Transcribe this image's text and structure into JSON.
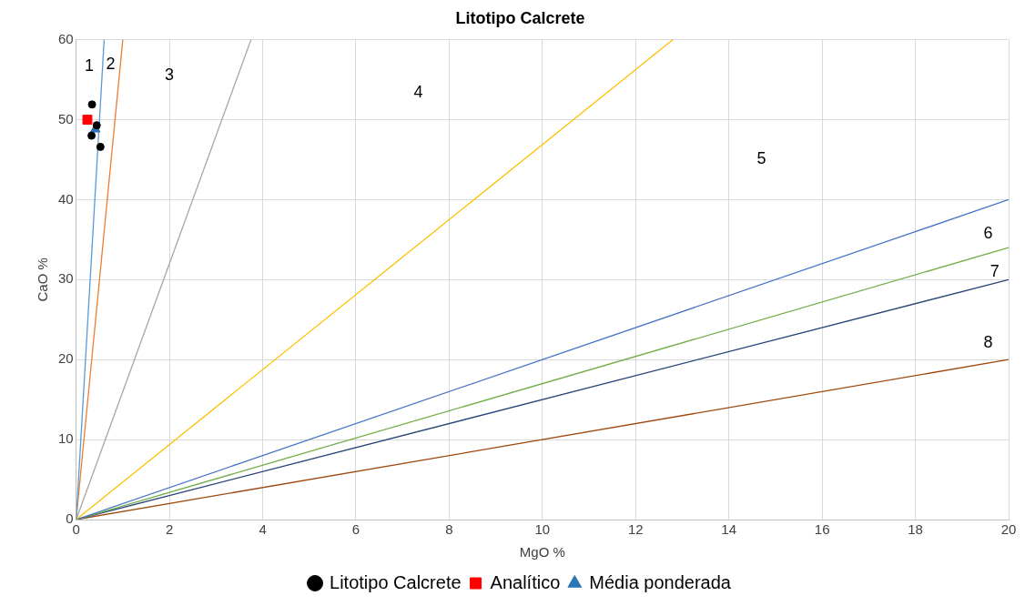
{
  "chart_data": {
    "type": "scatter",
    "title": "Litotipo Calcrete",
    "xlabel": "MgO %",
    "ylabel": "CaO %",
    "xlim": [
      0,
      20
    ],
    "xticks": [
      0,
      2,
      4,
      6,
      8,
      10,
      12,
      14,
      16,
      18,
      20
    ],
    "ylim": [
      0,
      60
    ],
    "yticks": [
      0,
      10,
      20,
      30,
      40,
      50,
      60
    ],
    "grid": true,
    "legend": "bottom",
    "series": [
      {
        "type": "line",
        "color": "#5b9bd5",
        "x": [
          0,
          0.6
        ],
        "values": [
          0,
          60
        ],
        "marker": "none"
      },
      {
        "type": "line",
        "color": "#ed7d31",
        "x": [
          0,
          1
        ],
        "values": [
          0,
          60
        ],
        "marker": "none"
      },
      {
        "type": "line",
        "color": "#a5a5a5",
        "x": [
          0,
          3.75
        ],
        "values": [
          0,
          60
        ],
        "marker": "none"
      },
      {
        "type": "line",
        "color": "#ffc000",
        "x": [
          0,
          12.8
        ],
        "values": [
          0,
          60
        ],
        "marker": "none"
      },
      {
        "type": "line",
        "color": "#4472c4",
        "x": [
          0,
          20
        ],
        "values": [
          0,
          40
        ],
        "marker": "none"
      },
      {
        "type": "line",
        "color": "#70ad47",
        "x": [
          0,
          20
        ],
        "values": [
          0,
          34
        ],
        "marker": "none"
      },
      {
        "type": "line",
        "color": "#264478",
        "x": [
          0,
          20
        ],
        "values": [
          0,
          30
        ],
        "marker": "none"
      },
      {
        "type": "line",
        "color": "#9e480e",
        "x": [
          0,
          20
        ],
        "values": [
          0,
          20
        ],
        "marker": "none"
      },
      {
        "name": "Litotipo Calcrete",
        "color": "#000000",
        "marker": "circle",
        "x": [
          0.34,
          0.44,
          0.33,
          0.52
        ],
        "values": [
          51.9,
          49.3,
          48.0,
          46.6
        ]
      },
      {
        "name": "Analítico",
        "color": "#ff0000",
        "marker": "square",
        "x": [
          0.24
        ],
        "values": [
          50.0
        ]
      },
      {
        "name": "Média ponderada",
        "color": "#2e75b6",
        "marker": "triangle",
        "x": [
          0.41
        ],
        "values": [
          48.8
        ]
      }
    ],
    "annotations": [
      "1",
      "2",
      "3",
      "4",
      "5",
      "6",
      "7",
      "8"
    ]
  }
}
